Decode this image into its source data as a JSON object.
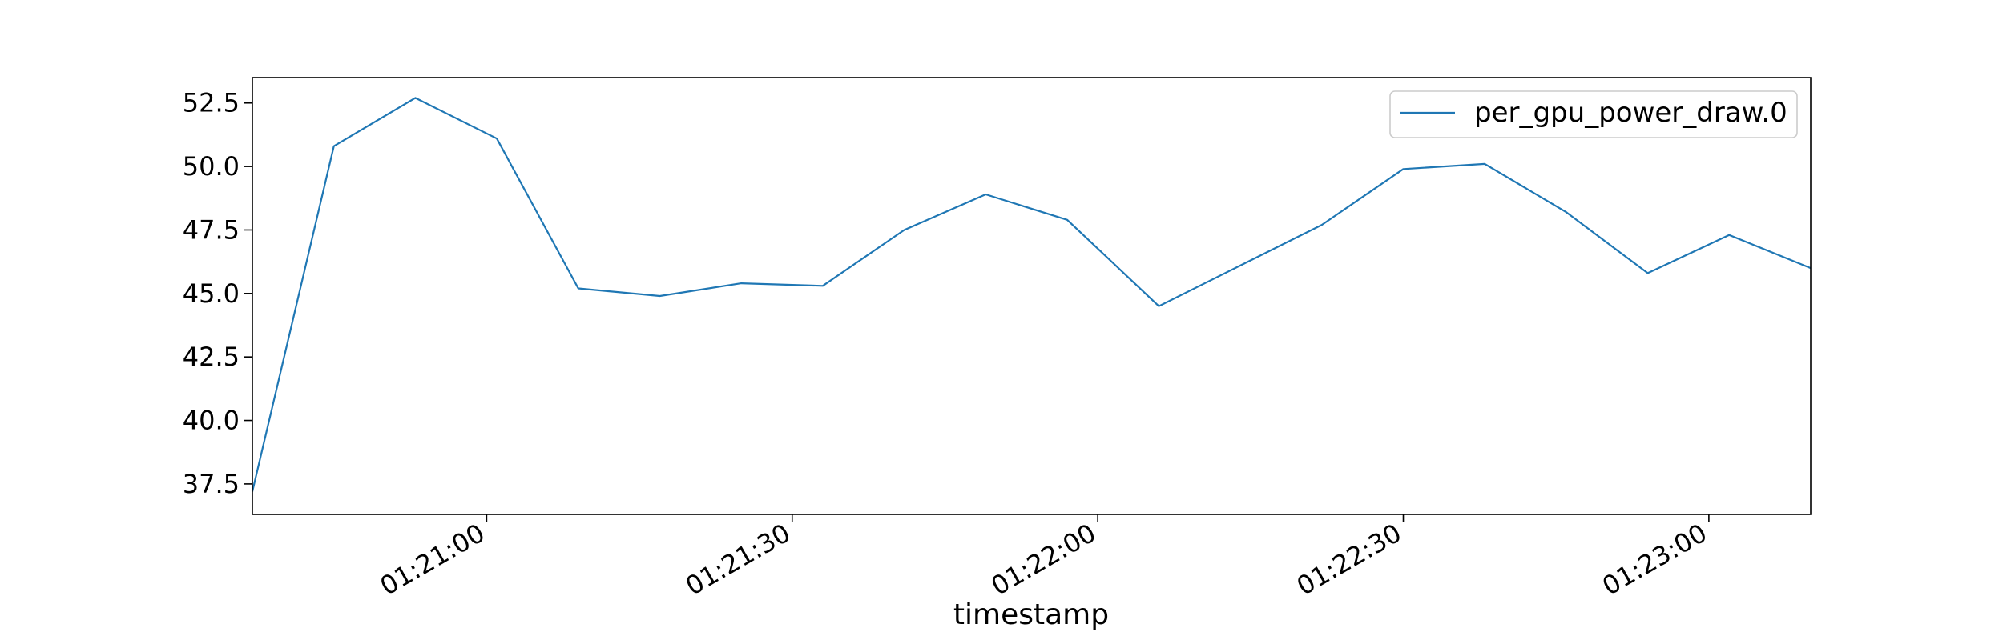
{
  "chart_data": {
    "type": "line",
    "title": "",
    "xlabel": "timestamp",
    "ylabel": "",
    "xlim": [
      "01:20:37",
      "01:23:10"
    ],
    "ylim": [
      36.3,
      53.5
    ],
    "grid": false,
    "legend_placement": "top-right",
    "x_ticks": [
      "01:21:00",
      "01:21:30",
      "01:22:00",
      "01:22:30",
      "01:23:00"
    ],
    "y_ticks": [
      "37.5",
      "40.0",
      "42.5",
      "45.0",
      "47.5",
      "50.0",
      "52.5"
    ],
    "series": [
      {
        "name": "per_gpu_power_draw.0",
        "color": "#1f77b4",
        "points": [
          {
            "x": "01:20:37",
            "y": 37.2
          },
          {
            "x": "01:20:45",
            "y": 50.8
          },
          {
            "x": "01:20:53",
            "y": 52.7
          },
          {
            "x": "01:21:01",
            "y": 51.1
          },
          {
            "x": "01:21:09",
            "y": 45.2
          },
          {
            "x": "01:21:17",
            "y": 44.9
          },
          {
            "x": "01:21:25",
            "y": 45.4
          },
          {
            "x": "01:21:33",
            "y": 45.3
          },
          {
            "x": "01:21:41",
            "y": 47.5
          },
          {
            "x": "01:21:49",
            "y": 48.9
          },
          {
            "x": "01:21:57",
            "y": 47.9
          },
          {
            "x": "01:22:06",
            "y": 44.5
          },
          {
            "x": "01:22:14",
            "y": 46.1
          },
          {
            "x": "01:22:22",
            "y": 47.7
          },
          {
            "x": "01:22:30",
            "y": 49.9
          },
          {
            "x": "01:22:38",
            "y": 50.1
          },
          {
            "x": "01:22:46",
            "y": 48.2
          },
          {
            "x": "01:22:54",
            "y": 45.8
          },
          {
            "x": "01:23:02",
            "y": 47.3
          },
          {
            "x": "01:23:10",
            "y": 46.0
          }
        ]
      }
    ]
  }
}
